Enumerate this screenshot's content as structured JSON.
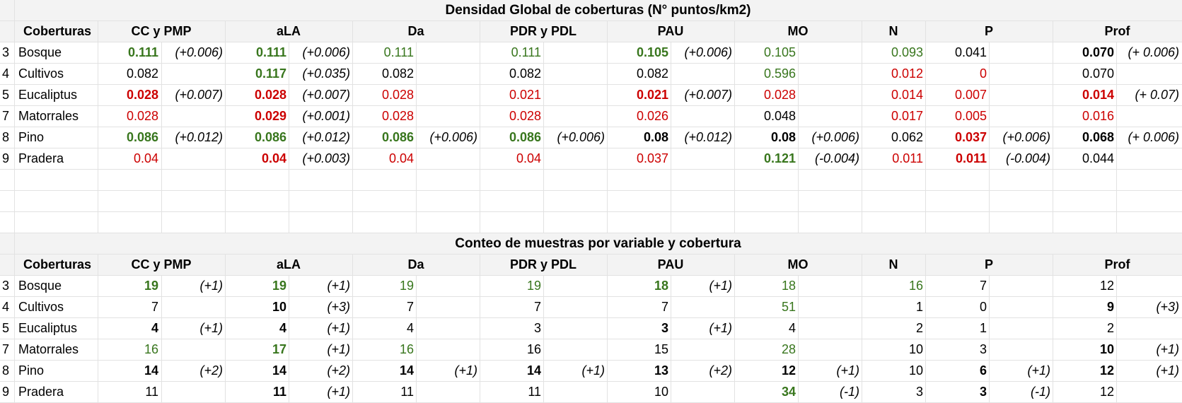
{
  "tables": [
    {
      "title": "Densidad Global de coberturas (N° puntos/km2)",
      "label_header": "Coberturas",
      "variables": [
        "CC y PMP",
        "aLA",
        "Da",
        "PDR y PDL",
        "PAU",
        "MO",
        "N",
        "P",
        "Prof"
      ],
      "rows": [
        {
          "index": "3",
          "name": "Bosque",
          "cells": [
            {
              "value": "0.111",
              "color": "#38761d",
              "bold": true,
              "note": "(+0.006)"
            },
            {
              "value": "0.111",
              "color": "#38761d",
              "bold": true,
              "note": "(+0.006)"
            },
            {
              "value": "0.111",
              "color": "#38761d",
              "bold": false,
              "note": ""
            },
            {
              "value": "0.111",
              "color": "#38761d",
              "bold": false,
              "note": ""
            },
            {
              "value": "0.105",
              "color": "#38761d",
              "bold": true,
              "note": "(+0.006)"
            },
            {
              "value": "0.105",
              "color": "#38761d",
              "bold": false,
              "note": ""
            },
            {
              "value": "0.093",
              "color": "#38761d",
              "bold": false,
              "note": ""
            },
            {
              "value": "0.041",
              "color": "#000000",
              "bold": false,
              "note": ""
            },
            {
              "value": "0.070",
              "color": "#000000",
              "bold": true,
              "note": "(+ 0.006)"
            }
          ]
        },
        {
          "index": "4",
          "name": "Cultivos",
          "cells": [
            {
              "value": "0.082",
              "color": "#000000",
              "bold": false,
              "note": ""
            },
            {
              "value": "0.117",
              "color": "#38761d",
              "bold": true,
              "note": "(+0.035)"
            },
            {
              "value": "0.082",
              "color": "#000000",
              "bold": false,
              "note": ""
            },
            {
              "value": "0.082",
              "color": "#000000",
              "bold": false,
              "note": ""
            },
            {
              "value": "0.082",
              "color": "#000000",
              "bold": false,
              "note": ""
            },
            {
              "value": "0.596",
              "color": "#38761d",
              "bold": false,
              "note": ""
            },
            {
              "value": "0.012",
              "color": "#cc0000",
              "bold": false,
              "note": ""
            },
            {
              "value": "0",
              "color": "#cc0000",
              "bold": false,
              "note": ""
            },
            {
              "value": "0.070",
              "color": "#000000",
              "bold": false,
              "note": ""
            }
          ]
        },
        {
          "index": "5",
          "name": "Eucaliptus",
          "cells": [
            {
              "value": "0.028",
              "color": "#cc0000",
              "bold": true,
              "note": "(+0.007)"
            },
            {
              "value": "0.028",
              "color": "#cc0000",
              "bold": true,
              "note": "(+0.007)"
            },
            {
              "value": "0.028",
              "color": "#cc0000",
              "bold": false,
              "note": ""
            },
            {
              "value": "0.021",
              "color": "#cc0000",
              "bold": false,
              "note": ""
            },
            {
              "value": "0.021",
              "color": "#cc0000",
              "bold": true,
              "note": "(+0.007)"
            },
            {
              "value": "0.028",
              "color": "#cc0000",
              "bold": false,
              "note": ""
            },
            {
              "value": "0.014",
              "color": "#cc0000",
              "bold": false,
              "note": ""
            },
            {
              "value": "0.007",
              "color": "#cc0000",
              "bold": false,
              "note": ""
            },
            {
              "value": "0.014",
              "color": "#cc0000",
              "bold": true,
              "note": "(+ 0.07)"
            }
          ]
        },
        {
          "index": "7",
          "name": "Matorrales",
          "cells": [
            {
              "value": "0.028",
              "color": "#cc0000",
              "bold": false,
              "note": ""
            },
            {
              "value": "0.029",
              "color": "#cc0000",
              "bold": true,
              "note": "(+0.001)"
            },
            {
              "value": "0.028",
              "color": "#cc0000",
              "bold": false,
              "note": ""
            },
            {
              "value": "0.028",
              "color": "#cc0000",
              "bold": false,
              "note": ""
            },
            {
              "value": "0.026",
              "color": "#cc0000",
              "bold": false,
              "note": ""
            },
            {
              "value": "0.048",
              "color": "#000000",
              "bold": false,
              "note": ""
            },
            {
              "value": "0.017",
              "color": "#cc0000",
              "bold": false,
              "note": ""
            },
            {
              "value": "0.005",
              "color": "#cc0000",
              "bold": false,
              "note": ""
            },
            {
              "value": "0.016",
              "color": "#cc0000",
              "bold": false,
              "note": ""
            }
          ]
        },
        {
          "index": "8",
          "name": "Pino",
          "cells": [
            {
              "value": "0.086",
              "color": "#38761d",
              "bold": true,
              "note": "(+0.012)"
            },
            {
              "value": "0.086",
              "color": "#38761d",
              "bold": true,
              "note": "(+0.012)"
            },
            {
              "value": "0.086",
              "color": "#38761d",
              "bold": true,
              "note": "(+0.006)"
            },
            {
              "value": "0.086",
              "color": "#38761d",
              "bold": true,
              "note": "(+0.006)"
            },
            {
              "value": "0.08",
              "color": "#000000",
              "bold": true,
              "note": "(+0.012)"
            },
            {
              "value": "0.08",
              "color": "#000000",
              "bold": true,
              "note": "(+0.006)"
            },
            {
              "value": "0.062",
              "color": "#000000",
              "bold": false,
              "note": ""
            },
            {
              "value": "0.037",
              "color": "#cc0000",
              "bold": true,
              "note": "(+0.006)"
            },
            {
              "value": "0.068",
              "color": "#000000",
              "bold": true,
              "note": "(+ 0.006)"
            }
          ]
        },
        {
          "index": "9",
          "name": "Pradera",
          "cells": [
            {
              "value": "0.04",
              "color": "#cc0000",
              "bold": false,
              "note": ""
            },
            {
              "value": "0.04",
              "color": "#cc0000",
              "bold": true,
              "note": "(+0.003)"
            },
            {
              "value": "0.04",
              "color": "#cc0000",
              "bold": false,
              "note": ""
            },
            {
              "value": "0.04",
              "color": "#cc0000",
              "bold": false,
              "note": ""
            },
            {
              "value": "0.037",
              "color": "#cc0000",
              "bold": false,
              "note": ""
            },
            {
              "value": "0.121",
              "color": "#38761d",
              "bold": true,
              "note": "(-0.004)"
            },
            {
              "value": "0.011",
              "color": "#cc0000",
              "bold": false,
              "note": ""
            },
            {
              "value": "0.011",
              "color": "#cc0000",
              "bold": true,
              "note": "(-0.004)"
            },
            {
              "value": "0.044",
              "color": "#000000",
              "bold": false,
              "note": ""
            }
          ]
        }
      ]
    },
    {
      "title": "Conteo de muestras por variable y cobertura",
      "label_header": "Coberturas",
      "variables": [
        "CC y PMP",
        "aLA",
        "Da",
        "PDR y PDL",
        "PAU",
        "MO",
        "N",
        "P",
        "Prof"
      ],
      "rows": [
        {
          "index": "3",
          "name": "Bosque",
          "cells": [
            {
              "value": "19",
              "color": "#38761d",
              "bold": true,
              "note": "(+1)"
            },
            {
              "value": "19",
              "color": "#38761d",
              "bold": true,
              "note": "(+1)"
            },
            {
              "value": "19",
              "color": "#38761d",
              "bold": false,
              "note": ""
            },
            {
              "value": "19",
              "color": "#38761d",
              "bold": false,
              "note": ""
            },
            {
              "value": "18",
              "color": "#38761d",
              "bold": true,
              "note": "(+1)"
            },
            {
              "value": "18",
              "color": "#38761d",
              "bold": false,
              "note": ""
            },
            {
              "value": "16",
              "color": "#38761d",
              "bold": false,
              "note": ""
            },
            {
              "value": "7",
              "color": "#000000",
              "bold": false,
              "note": ""
            },
            {
              "value": "12",
              "color": "#000000",
              "bold": false,
              "note": ""
            }
          ]
        },
        {
          "index": "4",
          "name": "Cultivos",
          "cells": [
            {
              "value": "7",
              "color": "#000000",
              "bold": false,
              "note": ""
            },
            {
              "value": "10",
              "color": "#000000",
              "bold": true,
              "note": "(+3)"
            },
            {
              "value": "7",
              "color": "#000000",
              "bold": false,
              "note": ""
            },
            {
              "value": "7",
              "color": "#000000",
              "bold": false,
              "note": ""
            },
            {
              "value": "7",
              "color": "#000000",
              "bold": false,
              "note": ""
            },
            {
              "value": "51",
              "color": "#38761d",
              "bold": false,
              "note": ""
            },
            {
              "value": "1",
              "color": "#000000",
              "bold": false,
              "note": ""
            },
            {
              "value": "0",
              "color": "#000000",
              "bold": false,
              "note": ""
            },
            {
              "value": "9",
              "color": "#000000",
              "bold": true,
              "note": "(+3)"
            }
          ]
        },
        {
          "index": "5",
          "name": "Eucaliptus",
          "cells": [
            {
              "value": "4",
              "color": "#000000",
              "bold": true,
              "note": "(+1)"
            },
            {
              "value": "4",
              "color": "#000000",
              "bold": true,
              "note": "(+1)"
            },
            {
              "value": "4",
              "color": "#000000",
              "bold": false,
              "note": ""
            },
            {
              "value": "3",
              "color": "#000000",
              "bold": false,
              "note": ""
            },
            {
              "value": "3",
              "color": "#000000",
              "bold": true,
              "note": "(+1)"
            },
            {
              "value": "4",
              "color": "#000000",
              "bold": false,
              "note": ""
            },
            {
              "value": "2",
              "color": "#000000",
              "bold": false,
              "note": ""
            },
            {
              "value": "1",
              "color": "#000000",
              "bold": false,
              "note": ""
            },
            {
              "value": "2",
              "color": "#000000",
              "bold": false,
              "note": ""
            }
          ]
        },
        {
          "index": "7",
          "name": "Matorrales",
          "cells": [
            {
              "value": "16",
              "color": "#38761d",
              "bold": false,
              "note": ""
            },
            {
              "value": "17",
              "color": "#38761d",
              "bold": true,
              "note": "(+1)"
            },
            {
              "value": "16",
              "color": "#38761d",
              "bold": false,
              "note": ""
            },
            {
              "value": "16",
              "color": "#000000",
              "bold": false,
              "note": ""
            },
            {
              "value": "15",
              "color": "#000000",
              "bold": false,
              "note": ""
            },
            {
              "value": "28",
              "color": "#38761d",
              "bold": false,
              "note": ""
            },
            {
              "value": "10",
              "color": "#000000",
              "bold": false,
              "note": ""
            },
            {
              "value": "3",
              "color": "#000000",
              "bold": false,
              "note": ""
            },
            {
              "value": "10",
              "color": "#000000",
              "bold": true,
              "note": "(+1)"
            }
          ]
        },
        {
          "index": "8",
          "name": "Pino",
          "cells": [
            {
              "value": "14",
              "color": "#000000",
              "bold": true,
              "note": "(+2)"
            },
            {
              "value": "14",
              "color": "#000000",
              "bold": true,
              "note": "(+2)"
            },
            {
              "value": "14",
              "color": "#000000",
              "bold": true,
              "note": "(+1)"
            },
            {
              "value": "14",
              "color": "#000000",
              "bold": true,
              "note": "(+1)"
            },
            {
              "value": "13",
              "color": "#000000",
              "bold": true,
              "note": "(+2)"
            },
            {
              "value": "12",
              "color": "#000000",
              "bold": true,
              "note": "(+1)"
            },
            {
              "value": "10",
              "color": "#000000",
              "bold": false,
              "note": ""
            },
            {
              "value": "6",
              "color": "#000000",
              "bold": true,
              "note": "(+1)"
            },
            {
              "value": "12",
              "color": "#000000",
              "bold": true,
              "note": "(+1)"
            }
          ]
        },
        {
          "index": "9",
          "name": "Pradera",
          "cells": [
            {
              "value": "11",
              "color": "#000000",
              "bold": false,
              "note": ""
            },
            {
              "value": "11",
              "color": "#000000",
              "bold": true,
              "note": "(+1)"
            },
            {
              "value": "11",
              "color": "#000000",
              "bold": false,
              "note": ""
            },
            {
              "value": "11",
              "color": "#000000",
              "bold": false,
              "note": ""
            },
            {
              "value": "10",
              "color": "#000000",
              "bold": false,
              "note": ""
            },
            {
              "value": "34",
              "color": "#38761d",
              "bold": true,
              "note": "(-1)"
            },
            {
              "value": "3",
              "color": "#000000",
              "bold": false,
              "note": ""
            },
            {
              "value": "3",
              "color": "#000000",
              "bold": true,
              "note": "(-1)"
            },
            {
              "value": "12",
              "color": "#000000",
              "bold": false,
              "note": ""
            }
          ]
        }
      ]
    }
  ]
}
